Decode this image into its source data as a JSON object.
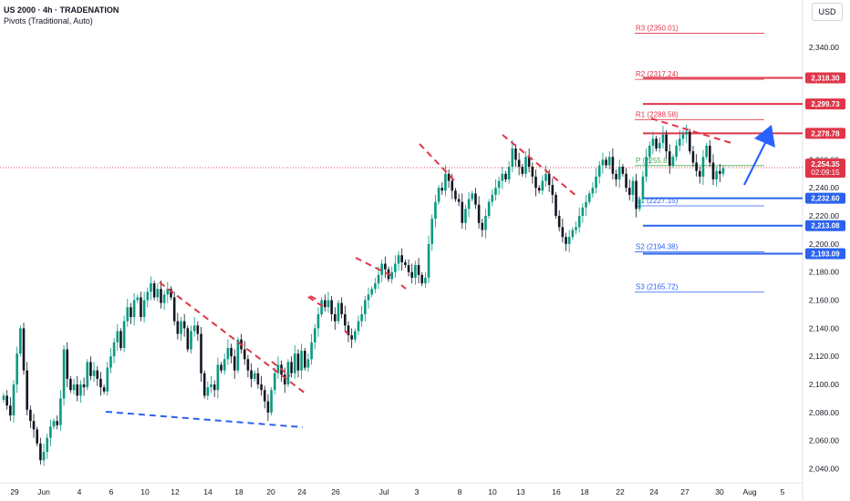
{
  "header": {
    "title": "US 2000 · 4h · TRADENATION",
    "subtitle": "Pivots (Traditional, Auto)",
    "currency": "USD"
  },
  "colors": {
    "up": "#089981",
    "down": "#131722",
    "resistance": "#e03548",
    "support": "#2a62f0",
    "pivot": "#4caf50",
    "arrow": "#2962ff"
  },
  "chart_data": {
    "type": "candlestick",
    "y_range": [
      2030,
      2364
    ],
    "y_ticks": [
      "2,340.00",
      "2,320.00",
      "2,300.00",
      "2,280.00",
      "2,260.00",
      "2,240.00",
      "2,220.00",
      "2,200.00",
      "2,180.00",
      "2,160.00",
      "2,140.00",
      "2,120.00",
      "2,100.00",
      "2,080.00",
      "2,060.00",
      "2,040.00"
    ],
    "y_tick_values": [
      2340,
      2320,
      2300,
      2280,
      2260,
      2240,
      2220,
      2200,
      2180,
      2160,
      2140,
      2120,
      2100,
      2080,
      2060,
      2040
    ],
    "x_ticks": [
      "29",
      "Jun",
      "4",
      "6",
      "10",
      "12",
      "14",
      "18",
      "20",
      "24",
      "26",
      "Jul",
      "3",
      "8",
      "10",
      "13",
      "16",
      "18",
      "22",
      "24",
      "27",
      "30",
      "Aug",
      "5"
    ],
    "pivots": [
      {
        "label": "R3 (2350.01)",
        "value": 2350.01,
        "kind": "resistance"
      },
      {
        "label": "R2 (2317.24)",
        "value": 2317.24,
        "kind": "resistance"
      },
      {
        "label": "R1 (2288.58)",
        "value": 2288.58,
        "kind": "resistance"
      },
      {
        "label": "P (2255.81)",
        "value": 2255.81,
        "kind": "pivot"
      },
      {
        "label": "S1 (2227.15)",
        "value": 2227.15,
        "kind": "support"
      },
      {
        "label": "S2 (2194.38)",
        "value": 2194.38,
        "kind": "support"
      },
      {
        "label": "S3 (2165.72)",
        "value": 2165.72,
        "kind": "support"
      }
    ],
    "levels": [
      {
        "label": "2,318.30",
        "value": 2318.3,
        "kind": "resistance"
      },
      {
        "label": "2,299.73",
        "value": 2299.73,
        "kind": "resistance"
      },
      {
        "label": "2,278.78",
        "value": 2278.78,
        "kind": "resistance"
      },
      {
        "label": "2,232.60",
        "value": 2232.6,
        "kind": "support"
      },
      {
        "label": "2,213.08",
        "value": 2213.08,
        "kind": "support"
      },
      {
        "label": "2,193.09",
        "value": 2193.09,
        "kind": "support"
      }
    ],
    "current_price": {
      "value": 2254.35,
      "label": "2,254.35",
      "countdown": "02:09:15"
    },
    "closes": [
      2092,
      2085,
      2078,
      2100,
      2122,
      2140,
      2110,
      2082,
      2074,
      2068,
      2058,
      2046,
      2052,
      2062,
      2070,
      2074,
      2071,
      2090,
      2125,
      2104,
      2096,
      2100,
      2092,
      2100,
      2098,
      2116,
      2106,
      2110,
      2104,
      2098,
      2095,
      2112,
      2120,
      2130,
      2138,
      2126,
      2145,
      2155,
      2148,
      2160,
      2162,
      2148,
      2160,
      2166,
      2172,
      2162,
      2168,
      2158,
      2164,
      2168,
      2162,
      2145,
      2136,
      2145,
      2140,
      2125,
      2138,
      2142,
      2136,
      2108,
      2092,
      2098,
      2100,
      2096,
      2114,
      2110,
      2118,
      2126,
      2120,
      2110,
      2132,
      2125,
      2118,
      2110,
      2104,
      2108,
      2100,
      2096,
      2088,
      2080,
      2096,
      2108,
      2114,
      2107,
      2100,
      2116,
      2108,
      2122,
      2110,
      2124,
      2112,
      2118,
      2130,
      2140,
      2150,
      2160,
      2155,
      2160,
      2150,
      2145,
      2158,
      2150,
      2142,
      2135,
      2132,
      2138,
      2145,
      2150,
      2160,
      2164,
      2168,
      2172,
      2178,
      2186,
      2182,
      2175,
      2180,
      2186,
      2192,
      2187,
      2185,
      2180,
      2176,
      2185,
      2178,
      2172,
      2176,
      2200,
      2218,
      2230,
      2240,
      2238,
      2250,
      2245,
      2238,
      2232,
      2230,
      2215,
      2225,
      2232,
      2236,
      2228,
      2215,
      2210,
      2220,
      2230,
      2235,
      2240,
      2245,
      2250,
      2246,
      2255,
      2268,
      2260,
      2255,
      2250,
      2262,
      2255,
      2248,
      2240,
      2238,
      2245,
      2250,
      2242,
      2235,
      2220,
      2212,
      2205,
      2200,
      2205,
      2210,
      2212,
      2220,
      2226,
      2230,
      2236,
      2240,
      2248,
      2256,
      2260,
      2256,
      2262,
      2250,
      2246,
      2255,
      2250,
      2240,
      2235,
      2245,
      2225,
      2232,
      2248,
      2262,
      2270,
      2275,
      2268,
      2272,
      2278,
      2266,
      2256,
      2262,
      2270,
      2275,
      2278,
      2280,
      2266,
      2258,
      2252,
      2248,
      2262,
      2270,
      2258,
      2246,
      2252,
      2250,
      2254
    ]
  }
}
